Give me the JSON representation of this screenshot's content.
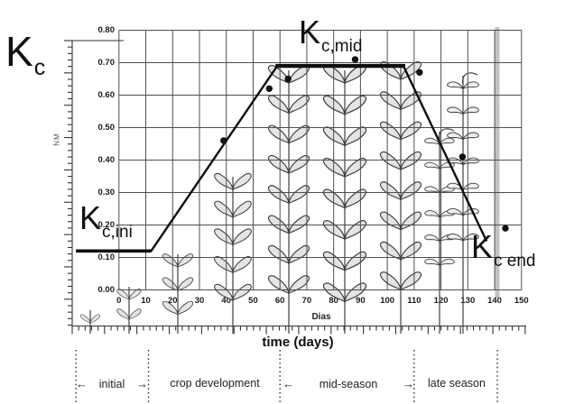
{
  "figure": {
    "kc_symbol": {
      "main": "K",
      "sub": "c"
    },
    "curve_labels": {
      "ini": {
        "main": "K",
        "sub": "c,ini"
      },
      "mid": {
        "main": "K",
        "sub": "c,mid"
      },
      "end": {
        "main": "K",
        "sub": "c end"
      }
    },
    "x_axis_inner_label": "Dias",
    "x_axis_label": "time (days)",
    "left_ruler_label": "NM",
    "arrows": {
      "left": "←",
      "right": "→"
    },
    "stages": {
      "initial": "initial",
      "development": "crop development",
      "mid": "mid-season",
      "late": "late season"
    }
  },
  "chart_data": {
    "type": "line",
    "xlabel": "time (days)",
    "xlabel_secondary": "Dias",
    "ylabel": "Kc",
    "xlim": [
      -16,
      150
    ],
    "ylim": [
      0,
      0.8
    ],
    "grid": true,
    "x_ticks": [
      0,
      10,
      20,
      30,
      40,
      50,
      60,
      70,
      80,
      90,
      100,
      110,
      120,
      130,
      140,
      150
    ],
    "x_tick_labels": [
      "0",
      "10",
      "20",
      "30",
      "40",
      "50",
      "60",
      "70",
      "80",
      "90",
      "100",
      "110",
      "120",
      "130",
      "140",
      "150"
    ],
    "y_ticks": [
      0.8,
      0.7,
      0.6,
      0.5,
      0.4,
      0.3,
      0.2,
      0.1,
      0.0
    ],
    "y_tick_labels": [
      "0.80",
      "0.70",
      "0.60",
      "0.50",
      "0.40",
      "0.30",
      "0.20",
      "0.10",
      "0.00"
    ],
    "series": [
      {
        "name": "segmented Kc curve",
        "type": "line",
        "points": [
          {
            "day": -16,
            "kc": 0.12
          },
          {
            "day": 12,
            "kc": 0.12
          },
          {
            "day": 59,
            "kc": 0.69
          },
          {
            "day": 106,
            "kc": 0.69
          },
          {
            "day": 137,
            "kc": 0.15
          }
        ]
      },
      {
        "name": "observed Kc points",
        "type": "scatter",
        "points": [
          {
            "day": 39,
            "kc": 0.46
          },
          {
            "day": 56,
            "kc": 0.62
          },
          {
            "day": 63,
            "kc": 0.65
          },
          {
            "day": 88,
            "kc": 0.71
          },
          {
            "day": 112,
            "kc": 0.67
          },
          {
            "day": 128,
            "kc": 0.41
          },
          {
            "day": 144,
            "kc": 0.19
          }
        ]
      }
    ],
    "annotations": [
      {
        "text": "Kc,ini",
        "day": -12,
        "kc": 0.18
      },
      {
        "text": "Kc,mid",
        "day": 70,
        "kc": 0.75
      },
      {
        "text": "Kc end",
        "day": 138,
        "kc": 0.1
      }
    ],
    "stage_boundaries_days": [
      -16,
      11,
      60,
      110,
      141
    ],
    "stage_names": [
      "initial",
      "crop development",
      "mid-season",
      "late season"
    ],
    "kc_ini": 0.12,
    "kc_mid": 0.69,
    "kc_end": 0.15
  }
}
